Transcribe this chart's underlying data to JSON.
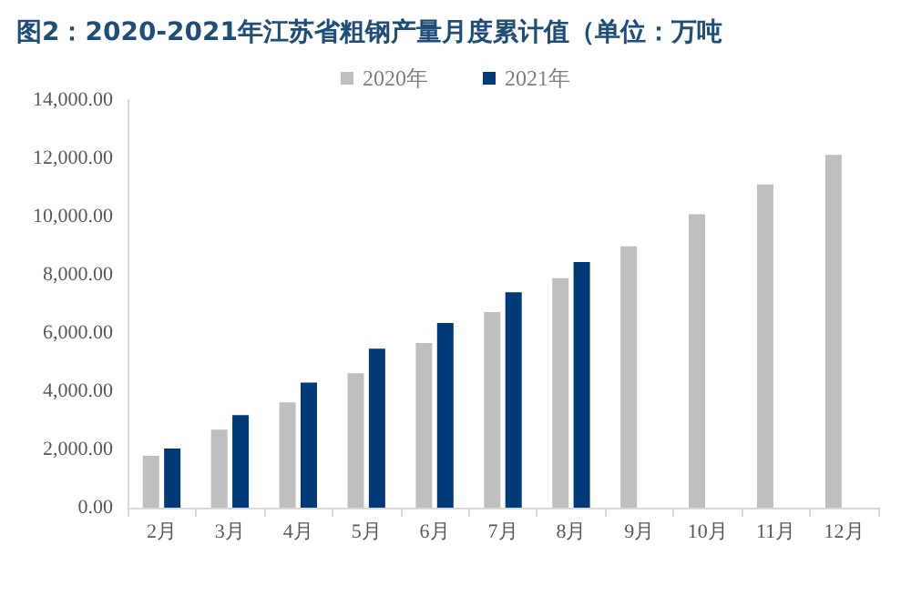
{
  "chart_data": {
    "type": "bar",
    "title": "图2：2020-2021年江苏省粗钢产量月度累计值（单位：万吨",
    "categories": [
      "2月",
      "3月",
      "4月",
      "5月",
      "6月",
      "7月",
      "8月",
      "9月",
      "10月",
      "11月",
      "12月"
    ],
    "series": [
      {
        "name": "2020年",
        "color": "#bfbfbf",
        "values": [
          1780,
          2680,
          3620,
          4620,
          5660,
          6720,
          7880,
          8980,
          10080,
          11100,
          12120
        ]
      },
      {
        "name": "2021年",
        "color": "#003a78",
        "values": [
          2030,
          3180,
          4300,
          5460,
          6340,
          7400,
          8440,
          null,
          null,
          null,
          null
        ]
      }
    ],
    "ylim": [
      0,
      14000
    ],
    "yticks": [
      {
        "value": 0,
        "label": "0.00"
      },
      {
        "value": 2000,
        "label": "2,000.00"
      },
      {
        "value": 4000,
        "label": "4,000.00"
      },
      {
        "value": 6000,
        "label": "6,000.00"
      },
      {
        "value": 8000,
        "label": "8,000.00"
      },
      {
        "value": 10000,
        "label": "10,000.00"
      },
      {
        "value": 12000,
        "label": "12,000.00"
      },
      {
        "value": 14000,
        "label": "14,000.00"
      }
    ],
    "grid": false,
    "legend": "top"
  }
}
